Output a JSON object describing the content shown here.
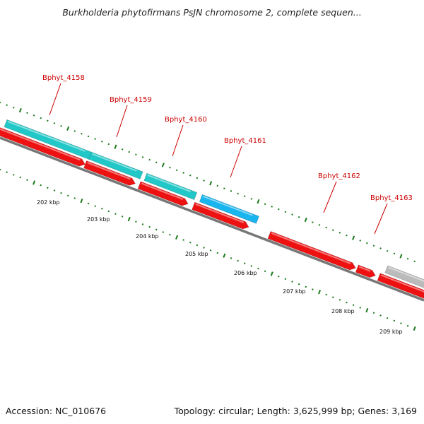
{
  "title": "Burkholderia phytofirmans PsJN chromosome 2, complete sequen...",
  "footer": {
    "accession": "Accession: NC_010676",
    "summary": "Topology: circular; Length: 3,625,999 bp; Genes: 3,169"
  },
  "colors": {
    "cds_forward_teal": "#22c8c8",
    "cds_highlight_blue": "#19b5ee",
    "cds_reverse_red": "#ee1111",
    "cds_gray": "#bbbbbb",
    "backbone": "#777777",
    "tick_green": "#1a7a1a",
    "label_red": "#cc0000"
  },
  "scale_labels": [
    "202 kbp",
    "203 kbp",
    "204 kbp",
    "205 kbp",
    "206 kbp",
    "207 kbp",
    "208 kbp",
    "209 kbp"
  ],
  "gene_labels": [
    "Bphyt_4158",
    "Bphyt_4159",
    "Bphyt_4160",
    "Bphyt_4161",
    "Bphyt_4162",
    "Bphyt_4163"
  ]
}
